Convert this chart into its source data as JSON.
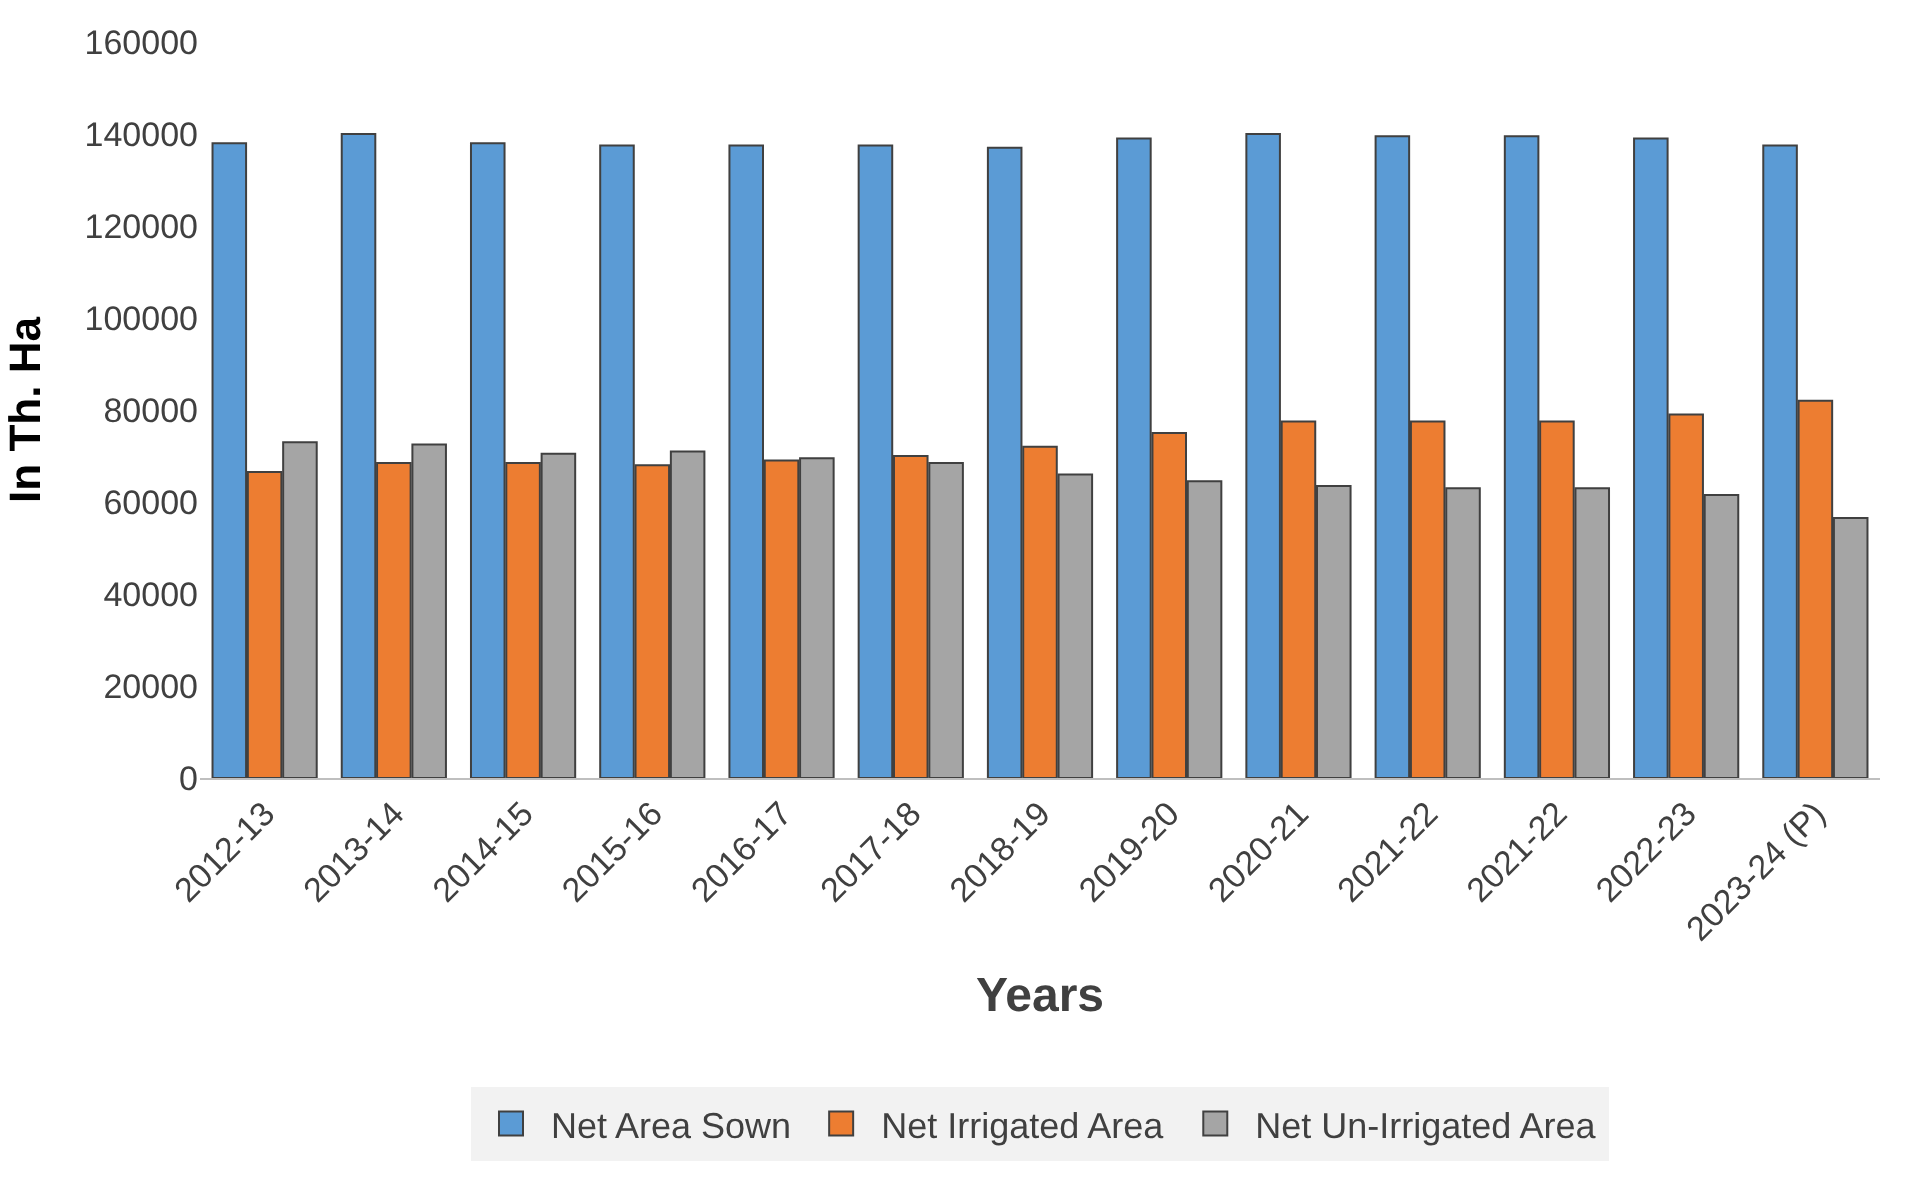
{
  "chart_data": {
    "type": "bar",
    "xlabel": "Years",
    "ylabel": "In Th. Ha",
    "categories": [
      "2012-13",
      "2013-14",
      "2014-15",
      "2015-16",
      "2016-17",
      "2017-18",
      "2018-19",
      "2019-20",
      "2020-21",
      "2021-22",
      "2021-22",
      "2022-23",
      "2023-24 (P)"
    ],
    "series": [
      {
        "name": "Net Area Sown",
        "color": "#5b9bd5",
        "values": [
          138000,
          140000,
          138000,
          137500,
          137500,
          137500,
          137000,
          139000,
          140000,
          139500,
          139500,
          139000,
          137500
        ]
      },
      {
        "name": "Net Irrigated Area",
        "color": "#ed7d31",
        "values": [
          66500,
          68500,
          68500,
          68000,
          69000,
          70000,
          72000,
          75000,
          77500,
          77500,
          77500,
          79000,
          82000
        ]
      },
      {
        "name": "Net Un-Irrigated Area",
        "color": "#a5a5a5",
        "values": [
          73000,
          72500,
          70500,
          71000,
          69500,
          68500,
          66000,
          64500,
          63500,
          63000,
          63000,
          61500,
          56500
        ]
      }
    ],
    "ylim": [
      0,
      160000
    ],
    "yticks": [
      0,
      20000,
      40000,
      60000,
      80000,
      100000,
      120000,
      140000,
      160000
    ],
    "legend": "bottom",
    "grid": false
  }
}
